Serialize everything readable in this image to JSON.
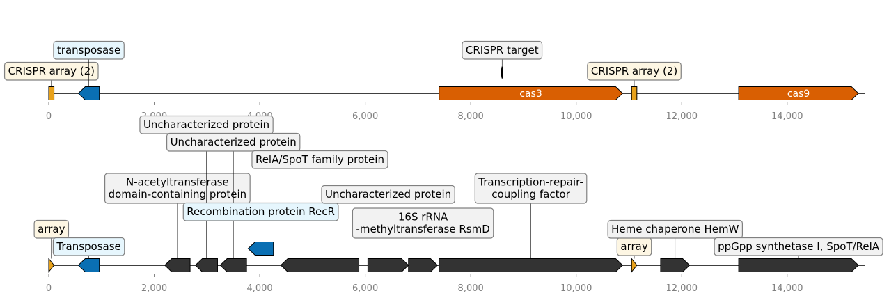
{
  "colors": {
    "array": "#e8a21c",
    "transposase": "#0a6fb3",
    "cas": "#d95f02",
    "gene": "#333333",
    "box_array": "#fdf6e3",
    "box_transposase": "#e6f6fd",
    "box_other": "#f2f2f2"
  },
  "chart_data": [
    {
      "type": "genome-map",
      "xlim": [
        0,
        15500
      ],
      "ticks": [
        0,
        2000,
        4000,
        6000,
        8000,
        10000,
        12000,
        14000
      ],
      "tick_labels": [
        "0",
        "2,000",
        "4,000",
        "6,000",
        "8,000",
        "10,000",
        "12,000",
        "14,000"
      ],
      "features": [
        {
          "start": 0,
          "end": 100,
          "strand": 0,
          "kind": "array",
          "label": "CRISPR array (2)",
          "box": "array",
          "level": 0,
          "text_in": ""
        },
        {
          "start": 560,
          "end": 960,
          "strand": -1,
          "kind": "transposase",
          "label": "transposase",
          "box": "transposase",
          "level": 1,
          "text_in": ""
        },
        {
          "start": 7400,
          "end": 10880,
          "strand": 1,
          "kind": "cas",
          "label": "",
          "box": "",
          "level": 0,
          "text_in": "cas3"
        },
        {
          "start": 8570,
          "end": 8620,
          "strand": 0,
          "kind": "target",
          "label": "CRISPR target",
          "box": "other",
          "level": 1,
          "text_in": ""
        },
        {
          "start": 11050,
          "end": 11150,
          "strand": 0,
          "kind": "array",
          "label": "CRISPR array (2)",
          "box": "array",
          "level": 0,
          "text_in": ""
        },
        {
          "start": 13080,
          "end": 15350,
          "strand": 1,
          "kind": "cas",
          "label": "",
          "box": "",
          "level": 0,
          "text_in": "cas9"
        }
      ]
    },
    {
      "type": "genome-map",
      "xlim": [
        0,
        15500
      ],
      "ticks": [
        0,
        2000,
        4000,
        6000,
        8000,
        10000,
        12000,
        14000
      ],
      "tick_labels": [
        "0",
        "2,000",
        "4,000",
        "6,000",
        "8,000",
        "10,000",
        "12,000",
        "14,000"
      ],
      "features": [
        {
          "start": 0,
          "end": 100,
          "strand": 1,
          "kind": "array",
          "label": "array",
          "box": "array",
          "level": 1,
          "text_in": ""
        },
        {
          "start": 560,
          "end": 960,
          "strand": -1,
          "kind": "transposase",
          "label": "Transposase",
          "box": "transposase",
          "level": 0,
          "text_in": ""
        },
        {
          "start": 2200,
          "end": 2680,
          "strand": -1,
          "kind": "gene",
          "label": "N-acetyltransferase\ndomain-containing protein",
          "box": "other",
          "level": 3,
          "text_in": ""
        },
        {
          "start": 2780,
          "end": 3200,
          "strand": -1,
          "kind": "gene",
          "label": "Uncharacterized protein",
          "box": "other",
          "level": 7,
          "text_in": ""
        },
        {
          "start": 3250,
          "end": 3750,
          "strand": -1,
          "kind": "gene",
          "label": "Uncharacterized protein",
          "box": "other",
          "level": 6,
          "text_in": ""
        },
        {
          "start": 3780,
          "end": 4260,
          "strand": -1,
          "kind": "transposase",
          "label": "Recombination protein RecR",
          "box": "transposase",
          "level": 2,
          "text_in": "",
          "raised": true
        },
        {
          "start": 4400,
          "end": 5880,
          "strand": -1,
          "kind": "gene",
          "label": "RelA/SpoT family protein",
          "box": "other",
          "level": 5,
          "text_in": ""
        },
        {
          "start": 6050,
          "end": 6820,
          "strand": 1,
          "kind": "gene",
          "label": "Uncharacterized protein",
          "box": "other",
          "level": 3,
          "text_in": ""
        },
        {
          "start": 6820,
          "end": 7370,
          "strand": 1,
          "kind": "gene",
          "label": "16S rRNA\n-methyltransferase RsmD",
          "box": "other",
          "level": 1,
          "text_in": ""
        },
        {
          "start": 7400,
          "end": 10880,
          "strand": 1,
          "kind": "gene",
          "label": "Transcription-repair-\ncoupling factor",
          "box": "other",
          "level": 3,
          "text_in": ""
        },
        {
          "start": 11050,
          "end": 11150,
          "strand": 1,
          "kind": "array",
          "label": "array",
          "box": "array",
          "level": 0,
          "text_in": ""
        },
        {
          "start": 11600,
          "end": 12150,
          "strand": 1,
          "kind": "gene",
          "label": "Heme chaperone HemW",
          "box": "other",
          "level": 1,
          "text_in": ""
        },
        {
          "start": 13080,
          "end": 15350,
          "strand": 1,
          "kind": "gene",
          "label": "ppGpp synthetase I, SpoT/RelA",
          "box": "other",
          "level": 0,
          "text_in": ""
        }
      ]
    }
  ]
}
